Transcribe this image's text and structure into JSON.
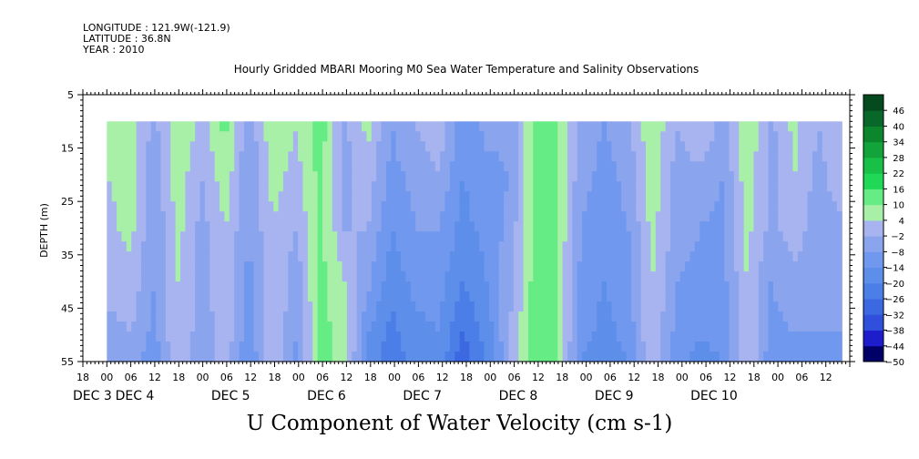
{
  "header": {
    "longitude": "LONGITUDE : 121.9W(-121.9)",
    "latitude": "LATITUDE : 36.8N",
    "year": "YEAR : 2010"
  },
  "plot_title": "Hourly Gridded MBARI Mooring M0 Sea Water Temperature and Salinity Observations",
  "bottom_title": "U Component of Water Velocity (cm s-1)",
  "chart_data": {
    "type": "heatmap",
    "title": "Hourly Gridded MBARI Mooring M0 Sea Water Temperature and Salinity Observations",
    "xlabel": "",
    "ylabel": "DEPTH (m)",
    "value_label": "U Component of Water Velocity (cm s-1)",
    "xlim_hours_dec": [
      2.75,
      10.75
    ],
    "data_x_start": "DEC 3 00",
    "data_x_end": "DEC 10 16",
    "ylim": [
      55,
      5
    ],
    "data_depth_range": [
      10,
      55
    ],
    "y_ticks": [
      5,
      15,
      25,
      35,
      45,
      55
    ],
    "x_hour_labels": [
      "18",
      "00",
      "06",
      "12",
      "18",
      "00",
      "06",
      "12",
      "18",
      "00",
      "06",
      "12",
      "18",
      "00",
      "06",
      "12",
      "18",
      "00",
      "06",
      "12",
      "18",
      "00",
      "06",
      "12",
      "18",
      "00",
      "06",
      "12",
      "18",
      "00",
      "06",
      "12"
    ],
    "x_day_labels": [
      "DEC 3",
      "DEC 4",
      "DEC 5",
      "DEC 6",
      "DEC 7",
      "DEC 8",
      "DEC 9",
      "DEC 10"
    ],
    "colorbar": {
      "levels": [
        -50,
        -44,
        -38,
        -32,
        -26,
        -20,
        -14,
        -8,
        -2,
        4,
        10,
        16,
        22,
        28,
        34,
        40,
        46
      ],
      "labels": [
        "46",
        "40",
        "34",
        "28",
        "22",
        "16",
        "10",
        "4",
        "−2",
        "−8",
        "−14",
        "−20",
        "−26",
        "−32",
        "−38",
        "−44",
        "−50"
      ]
    },
    "u_velocity_cm_s": {
      "depths": [
        10,
        20,
        30,
        40,
        50,
        55
      ],
      "time_labels": [
        "DEC 3 00",
        "DEC 3 06",
        "DEC 3 12",
        "DEC 3 18",
        "DEC 4 00",
        "DEC 4 06",
        "DEC 4 12",
        "DEC 4 18",
        "DEC 5 00",
        "DEC 5 06",
        "DEC 5 12",
        "DEC 5 18",
        "DEC 6 00",
        "DEC 6 06",
        "DEC 6 12",
        "DEC 6 18",
        "DEC 7 00",
        "DEC 7 06",
        "DEC 7 12",
        "DEC 7 18",
        "DEC 8 00",
        "DEC 8 06",
        "DEC 8 12",
        "DEC 8 18",
        "DEC 9 00",
        "DEC 9 06",
        "DEC 9 12",
        "DEC 9 18",
        "DEC 10 00",
        "DEC 10 06",
        "DEC 10 12",
        "DEC 10 16"
      ],
      "values": [
        [
          4,
          8,
          -4,
          10,
          2,
          12,
          -6,
          10,
          4,
          14,
          -4,
          6,
          -8,
          -2,
          4,
          -12,
          -6,
          -6,
          10,
          10,
          -4,
          -8,
          -4,
          10,
          -2,
          4,
          -4,
          10,
          -4,
          6,
          -2,
          4
        ],
        [
          4,
          6,
          -6,
          8,
          -2,
          8,
          -8,
          6,
          2,
          12,
          -4,
          2,
          -10,
          -6,
          -2,
          -14,
          -10,
          -8,
          10,
          10,
          -6,
          -10,
          -6,
          8,
          -4,
          -4,
          -8,
          8,
          -4,
          4,
          -4,
          2
        ],
        [
          2,
          6,
          -8,
          6,
          -4,
          4,
          -8,
          4,
          -2,
          12,
          -2,
          -2,
          -14,
          -8,
          -8,
          -16,
          -12,
          -6,
          10,
          10,
          -8,
          -12,
          -8,
          6,
          -4,
          -8,
          -10,
          6,
          -4,
          2,
          -6,
          -4
        ],
        [
          2,
          2,
          -8,
          4,
          -4,
          2,
          -10,
          4,
          -6,
          12,
          4,
          -6,
          -18,
          -12,
          -12,
          -20,
          -14,
          -4,
          12,
          10,
          -10,
          -14,
          -10,
          4,
          -8,
          -10,
          -10,
          4,
          -8,
          -4,
          -6,
          -6
        ],
        [
          -6,
          -2,
          -10,
          4,
          -6,
          2,
          -12,
          4,
          -8,
          12,
          8,
          -14,
          -22,
          -16,
          -14,
          -26,
          -18,
          -2,
          12,
          10,
          -12,
          -16,
          -12,
          4,
          -10,
          -14,
          -12,
          4,
          -10,
          -8,
          -8,
          -8
        ],
        [
          -8,
          -4,
          -12,
          4,
          -8,
          2,
          -14,
          4,
          -10,
          12,
          8,
          -16,
          -24,
          -18,
          -16,
          -30,
          -20,
          -2,
          12,
          10,
          -14,
          -18,
          -14,
          4,
          -12,
          -16,
          -14,
          4,
          -12,
          -10,
          -10,
          -10
        ]
      ]
    }
  },
  "colors": {
    "palette_low_to_high": [
      "#000066",
      "#1d1dcc",
      "#2f4fdc",
      "#3c68e2",
      "#4b7ee6",
      "#5c8eea",
      "#7098ee",
      "#8aa4ee",
      "#a8b4f0",
      "#a8f0a8",
      "#66ec84",
      "#1ed856",
      "#18c048",
      "#12a43a",
      "#0c862c",
      "#08682a",
      "#054a1e"
    ]
  }
}
